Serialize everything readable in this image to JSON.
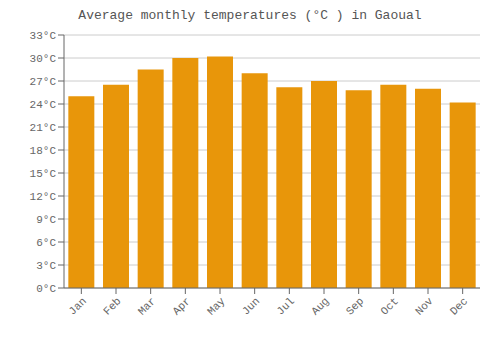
{
  "chart_data": {
    "type": "bar",
    "title": "Average monthly temperatures (°C ) in Gaoual",
    "categories": [
      "Jan",
      "Feb",
      "Mar",
      "Apr",
      "May",
      "Jun",
      "Jul",
      "Aug",
      "Sep",
      "Oct",
      "Nov",
      "Dec"
    ],
    "values": [
      25.0,
      26.5,
      28.5,
      30.0,
      30.2,
      28.0,
      26.2,
      27.0,
      25.8,
      26.5,
      26.0,
      24.2
    ],
    "color": "#E8960A",
    "ylim": [
      0,
      33
    ],
    "yticks": [
      {
        "value": 0,
        "label": "0°C"
      },
      {
        "value": 3,
        "label": "3°C"
      },
      {
        "value": 6,
        "label": "6°C"
      },
      {
        "value": 9,
        "label": "9°C"
      },
      {
        "value": 12,
        "label": "12°C"
      },
      {
        "value": 15,
        "label": "15°C"
      },
      {
        "value": 18,
        "label": "18°C"
      },
      {
        "value": 21,
        "label": "21°C"
      },
      {
        "value": 24,
        "label": "24°C"
      },
      {
        "value": 27,
        "label": "27°C"
      },
      {
        "value": 30,
        "label": "30°C"
      },
      {
        "value": 33,
        "label": "33°C"
      }
    ],
    "grid": true
  }
}
